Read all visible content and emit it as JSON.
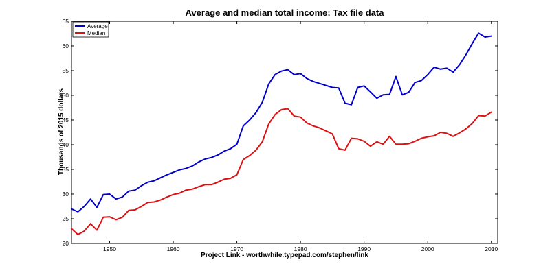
{
  "chart_data": {
    "type": "line",
    "title": "Average and median total income: Tax file data",
    "xlabel": "Project Link - worthwhile.typepad.com/stephen/link",
    "ylabel": "Thousands of 2015 dollars",
    "xlim": [
      1944,
      2011
    ],
    "ylim": [
      20,
      65
    ],
    "x_ticks": [
      1950,
      1960,
      1970,
      1980,
      1990,
      2000,
      2010
    ],
    "y_ticks": [
      20,
      25,
      30,
      35,
      40,
      45,
      50,
      55,
      60,
      65
    ],
    "grid": false,
    "legend_position": "top-left",
    "x": [
      1944,
      1945,
      1946,
      1947,
      1948,
      1949,
      1950,
      1951,
      1952,
      1953,
      1954,
      1955,
      1956,
      1957,
      1958,
      1959,
      1960,
      1961,
      1962,
      1963,
      1964,
      1965,
      1966,
      1967,
      1968,
      1969,
      1970,
      1971,
      1972,
      1973,
      1974,
      1975,
      1976,
      1977,
      1978,
      1979,
      1980,
      1981,
      1982,
      1983,
      1984,
      1985,
      1986,
      1987,
      1988,
      1989,
      1990,
      1991,
      1992,
      1993,
      1994,
      1995,
      1996,
      1997,
      1998,
      1999,
      2000,
      2001,
      2002,
      2003,
      2004,
      2005,
      2006,
      2007,
      2008,
      2009,
      2010
    ],
    "series": [
      {
        "name": "Average",
        "color": "#0000cc",
        "values": [
          27.0,
          26.4,
          27.5,
          29.0,
          27.3,
          29.9,
          30.0,
          29.0,
          29.4,
          30.6,
          30.8,
          31.7,
          32.4,
          32.7,
          33.3,
          33.9,
          34.4,
          34.9,
          35.2,
          35.7,
          36.5,
          37.1,
          37.4,
          37.9,
          38.7,
          39.2,
          40.1,
          43.8,
          45.0,
          46.5,
          48.6,
          52.3,
          54.2,
          54.9,
          55.2,
          54.2,
          54.4,
          53.4,
          52.8,
          52.4,
          52.0,
          51.6,
          51.5,
          48.4,
          48.1,
          51.6,
          51.9,
          50.7,
          49.4,
          50.1,
          50.2,
          53.8,
          50.1,
          50.6,
          52.6,
          53.0,
          54.2,
          55.7,
          55.3,
          55.5,
          54.7,
          56.2,
          58.2,
          60.5,
          62.6,
          61.8,
          62.0
        ]
      },
      {
        "name": "Median",
        "color": "#dd1111",
        "values": [
          23.0,
          21.8,
          22.5,
          24.0,
          22.7,
          25.3,
          25.4,
          24.8,
          25.3,
          26.7,
          26.8,
          27.5,
          28.3,
          28.4,
          28.8,
          29.4,
          29.9,
          30.2,
          30.8,
          31.0,
          31.5,
          31.9,
          31.9,
          32.4,
          33.0,
          33.2,
          33.9,
          37.0,
          37.8,
          38.9,
          40.6,
          44.2,
          46.1,
          47.1,
          47.3,
          45.8,
          45.6,
          44.4,
          43.8,
          43.4,
          42.8,
          42.2,
          39.2,
          38.9,
          41.3,
          41.2,
          40.7,
          39.7,
          40.6,
          40.1,
          41.7,
          40.1,
          40.1,
          40.2,
          40.7,
          41.3,
          41.6,
          41.8,
          42.5,
          42.3,
          41.7,
          42.4,
          43.2,
          44.3,
          45.9,
          45.8,
          46.6
        ]
      }
    ]
  }
}
